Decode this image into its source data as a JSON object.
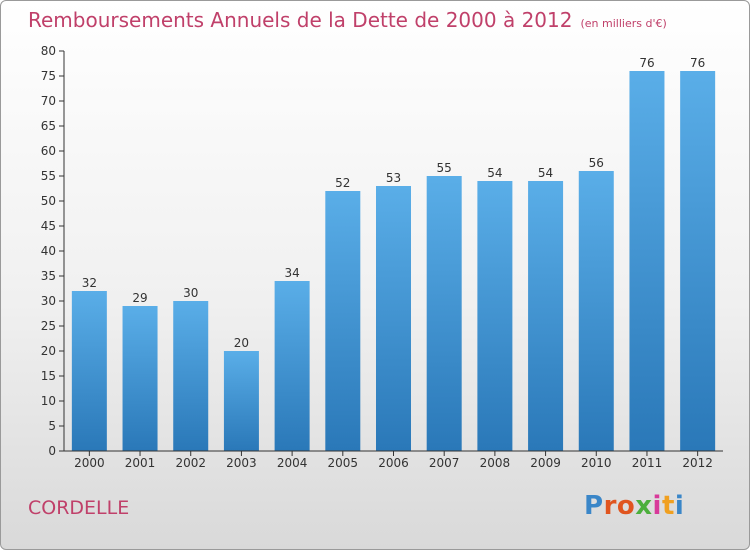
{
  "title": "Remboursements Annuels de la Dette de 2000 à 2012",
  "subtitle": "(en milliers d'€)",
  "commune": "CORDELLE",
  "brand": "Proxiti",
  "colors": {
    "bar_light": "#5aaee8",
    "bar_dark": "#2a78b8",
    "title": "#c0406a",
    "brand_letters": [
      "#3a86c8",
      "#e0551f",
      "#e0551f",
      "#4caf3c",
      "#d83a9a",
      "#f0a020",
      "#3a86c8"
    ]
  },
  "chart_data": {
    "type": "bar",
    "categories": [
      "2000",
      "2001",
      "2002",
      "2003",
      "2004",
      "2005",
      "2006",
      "2007",
      "2008",
      "2009",
      "2010",
      "2011",
      "2012"
    ],
    "values": [
      32,
      29,
      30,
      20,
      34,
      52,
      53,
      55,
      54,
      54,
      56,
      76,
      76
    ],
    "title": "Remboursements Annuels de la Dette de 2000 à 2012",
    "subtitle": "(en milliers d'€)",
    "xlabel": "",
    "ylabel": "",
    "ylim": [
      0,
      80
    ],
    "yticks": [
      0,
      5,
      10,
      15,
      20,
      25,
      30,
      35,
      40,
      45,
      50,
      55,
      60,
      65,
      70,
      75,
      80
    ],
    "grid": false,
    "data_labels": true
  }
}
